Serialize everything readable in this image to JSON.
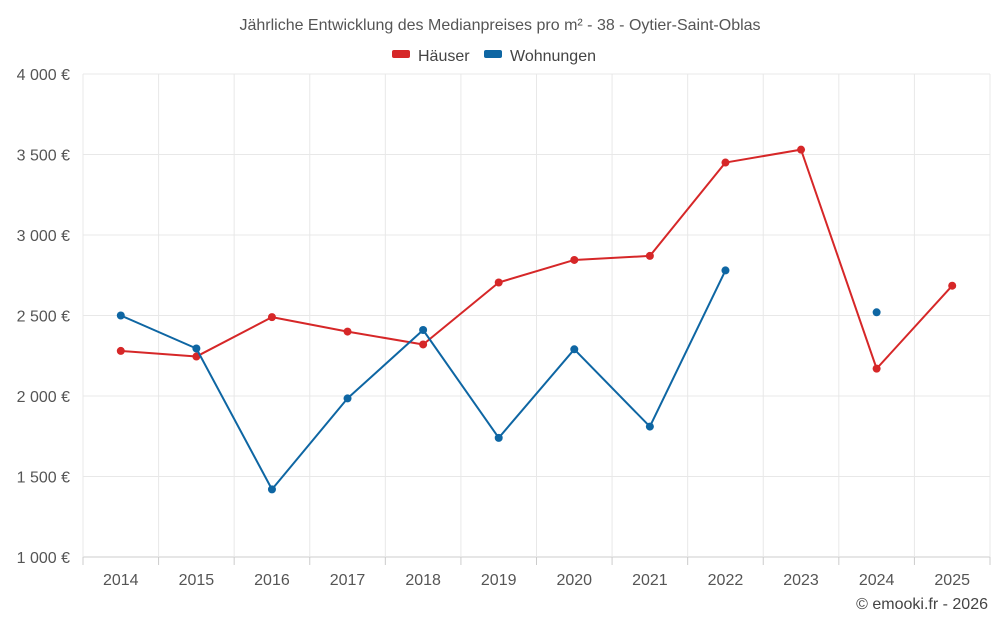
{
  "chart_data": {
    "type": "line",
    "title": "Jährliche Entwicklung des Medianpreises pro m² - 38 - Oytier-Saint-Oblas",
    "categories": [
      "2014",
      "2015",
      "2016",
      "2017",
      "2018",
      "2019",
      "2020",
      "2021",
      "2022",
      "2023",
      "2024",
      "2025"
    ],
    "ylim": [
      1000,
      4000
    ],
    "yticks": [
      1000,
      1500,
      2000,
      2500,
      3000,
      3500,
      4000
    ],
    "ytick_labels": [
      "1 000 €",
      "1 500 €",
      "2 000 €",
      "2 500 €",
      "3 000 €",
      "3 500 €",
      "4 000 €"
    ],
    "grid": true,
    "legend_position": "top-center",
    "series": [
      {
        "name": "Häuser",
        "color": "#d62728",
        "values": [
          2280,
          2245,
          2490,
          2400,
          2320,
          2705,
          2845,
          2870,
          3450,
          3530,
          2170,
          2685
        ]
      },
      {
        "name": "Wohnungen",
        "color": "#0e66a3",
        "values": [
          2500,
          2295,
          1420,
          1985,
          2410,
          1740,
          2290,
          1810,
          2780,
          null,
          2520,
          null
        ]
      }
    ]
  },
  "credit": "© emooki.fr - 2026"
}
